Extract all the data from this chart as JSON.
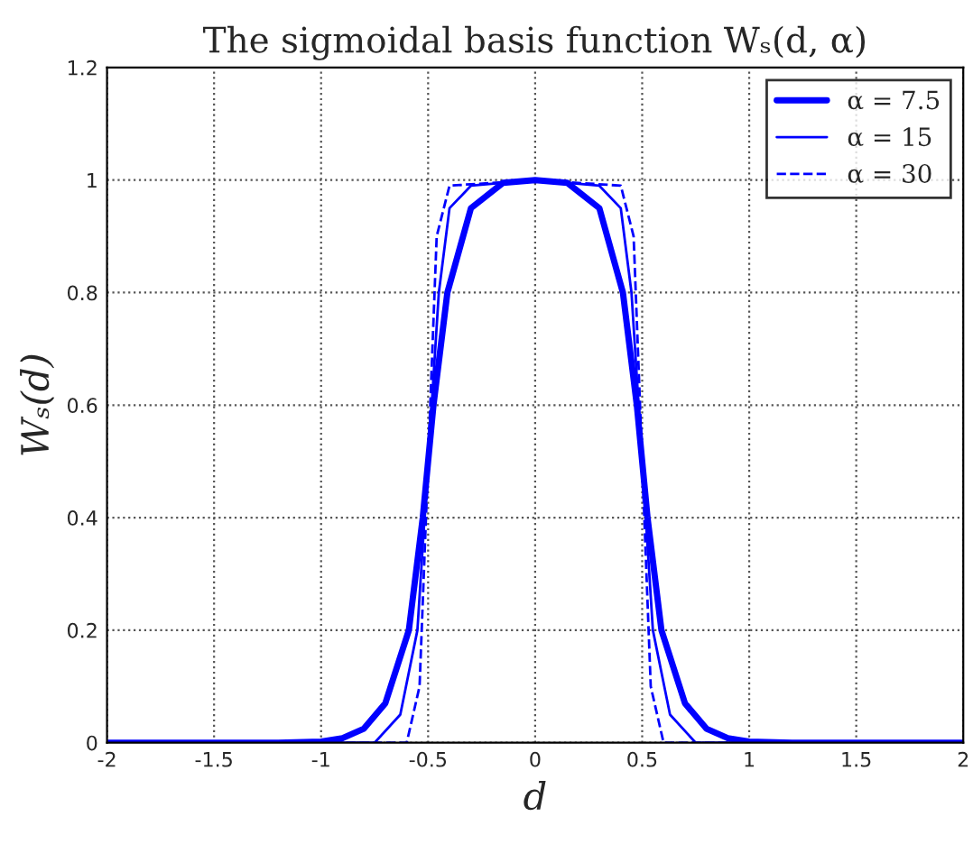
{
  "chart_data": {
    "type": "line",
    "title": "The sigmoidal basis function Wₛ(d, α)",
    "xlabel": "d",
    "ylabel": "Wₛ(d)",
    "xlim": [
      -2,
      2
    ],
    "xticks": [
      -2,
      -1.5,
      -1,
      -0.5,
      0,
      0.5,
      1,
      1.5,
      2
    ],
    "ylim": [
      0,
      1.2
    ],
    "yticks": [
      0,
      0.2,
      0.4,
      0.6,
      0.8,
      1,
      1.2
    ],
    "grid": true,
    "legend": "top right",
    "series": [
      {
        "name": "α = 7.5",
        "color": "#0000ff",
        "line_style": "solid",
        "x": [
          -2,
          -1.2,
          -1,
          -0.9,
          -0.8,
          -0.7,
          -0.59,
          -0.525,
          -0.5,
          -0.475,
          -0.41,
          -0.3,
          -0.15,
          0,
          0.15,
          0.3,
          0.41,
          0.475,
          0.5,
          0.525,
          0.59,
          0.7,
          0.8,
          0.9,
          1,
          1.2,
          2
        ],
        "values": [
          0,
          0,
          0.002,
          0.008,
          0.025,
          0.07,
          0.2,
          0.4,
          0.5,
          0.6,
          0.8,
          0.95,
          0.995,
          1,
          0.995,
          0.95,
          0.8,
          0.6,
          0.5,
          0.4,
          0.2,
          0.07,
          0.025,
          0.008,
          0.002,
          0,
          0
        ]
      },
      {
        "name": "α = 15",
        "color": "#0000ff",
        "line_style": "solid",
        "x": [
          -2,
          -0.75,
          -0.63,
          -0.55,
          -0.5,
          -0.45,
          -0.4,
          -0.3,
          0,
          0.3,
          0.4,
          0.45,
          0.5,
          0.55,
          0.63,
          0.75,
          2
        ],
        "values": [
          0,
          0,
          0.05,
          0.2,
          0.5,
          0.8,
          0.95,
          0.99,
          1,
          0.99,
          0.95,
          0.8,
          0.5,
          0.2,
          0.05,
          0,
          0
        ]
      },
      {
        "name": "α = 30",
        "color": "#0000ff",
        "line_style": "dashed",
        "x": [
          -2,
          -0.6,
          -0.54,
          -0.5,
          -0.46,
          -0.4,
          0,
          0.4,
          0.46,
          0.5,
          0.54,
          0.6,
          2
        ],
        "values": [
          0,
          0,
          0.1,
          0.5,
          0.9,
          0.99,
          1,
          0.99,
          0.9,
          0.5,
          0.1,
          0,
          0
        ]
      }
    ]
  }
}
